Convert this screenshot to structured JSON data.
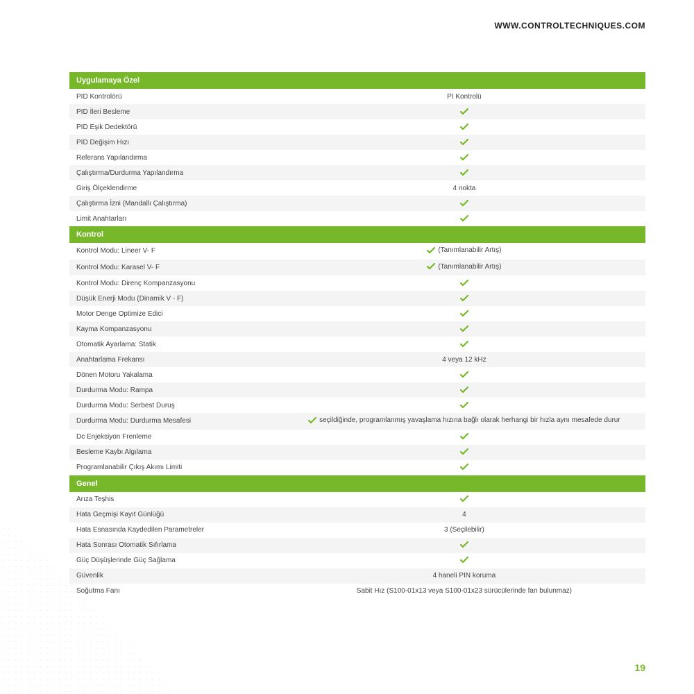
{
  "header": {
    "url": "WWW.CONTROLTECHNIQUES.COM"
  },
  "colors": {
    "accent": "#76b82a",
    "row_alt": "#f4f4f4",
    "row": "#ffffff",
    "text": "#333333",
    "check": "#76b82a"
  },
  "page_number": "19",
  "sections": [
    {
      "title": "Uygulamaya Özel",
      "rows": [
        {
          "label": "PID Kontrolörü",
          "value_type": "text",
          "value": "PI Kontrolü"
        },
        {
          "label": "PID İleri Besleme",
          "value_type": "check"
        },
        {
          "label": "PID Eşik Dedektörü",
          "value_type": "check"
        },
        {
          "label": "PID Değişim Hızı",
          "value_type": "check"
        },
        {
          "label": "Referans Yapılandırma",
          "value_type": "check"
        },
        {
          "label": "Çalıştırma/Durdurma Yapılandırma",
          "value_type": "check"
        },
        {
          "label": "Giriş Ölçeklendirme",
          "value_type": "text",
          "value": "4 nokta"
        },
        {
          "label": "Çalıştırma İzni (Mandallı Çalıştırma)",
          "value_type": "check"
        },
        {
          "label": "Limit Anahtarları",
          "value_type": "check"
        }
      ]
    },
    {
      "title": "Kontrol",
      "rows": [
        {
          "label": "Kontrol Modu: Lineer V- F",
          "value_type": "check_text",
          "value": "(Tanımlanabilir Artış)"
        },
        {
          "label": "Kontrol Modu: Karasel V- F",
          "value_type": "check_text",
          "value": "(Tanımlanabilir Artış)"
        },
        {
          "label": "Kontrol Modu: Direnç Kompanzasyonu",
          "value_type": "check"
        },
        {
          "label": "Düşük Enerji Modu (Dinamik V - F)",
          "value_type": "check"
        },
        {
          "label": "Motor Denge Optimize Edici",
          "value_type": "check"
        },
        {
          "label": "Kayma Kompanzasyonu",
          "value_type": "check"
        },
        {
          "label": "Otomatik Ayarlama: Statik",
          "value_type": "check"
        },
        {
          "label": "Anahtarlama Frekansı",
          "value_type": "text",
          "value": "4 veya 12 kHz"
        },
        {
          "label": "Dönen Motoru Yakalama",
          "value_type": "check"
        },
        {
          "label": "Durdurma Modu: Rampa",
          "value_type": "check"
        },
        {
          "label": "Durdurma Modu: Serbest Duruş",
          "value_type": "check"
        },
        {
          "label": "Durdurma Modu: Durdurma Mesafesi",
          "value_type": "check_text",
          "value": "seçildiğinde, programlanmış yavaşlama hızına bağlı olarak herhangi bir hızla aynı mesafede durur"
        },
        {
          "label": "Dc Enjeksiyon Frenleme",
          "value_type": "check"
        },
        {
          "label": "Besleme Kaybı Algılama",
          "value_type": "check"
        },
        {
          "label": "Programlanabilir Çıkış Akımı Limiti",
          "value_type": "check"
        }
      ]
    },
    {
      "title": "Genel",
      "rows": [
        {
          "label": "Arıza Teşhis",
          "value_type": "check"
        },
        {
          "label": "Hata Geçmişi Kayıt Günlüğü",
          "value_type": "text",
          "value": "4"
        },
        {
          "label": "Hata Esnasında Kaydedilen Parametreler",
          "value_type": "text",
          "value": "3 (Seçilebilir)"
        },
        {
          "label": "Hata Sonrası Otomatik Sıfırlama",
          "value_type": "check"
        },
        {
          "label": "Güç Düşüşlerinde Güç Sağlama",
          "value_type": "check"
        },
        {
          "label": "Güvenlik",
          "value_type": "text",
          "value": "4 haneli PIN koruma"
        },
        {
          "label": "Soğutma Fanı",
          "value_type": "text",
          "value": "Sabit Hız (S100-01x13 veya S100-01x23 sürücülerinde fan bulunmaz)"
        }
      ]
    }
  ]
}
